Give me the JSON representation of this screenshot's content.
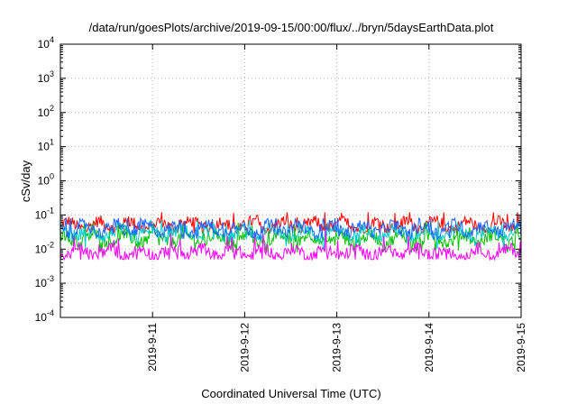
{
  "chart_data": {
    "type": "line",
    "title": "/data/run/goesPlots/archive/2019-09-15/00:00/flux/../bryn/5daysEarthData.plot",
    "xlabel": "Coordinated Universal Time (UTC)",
    "ylabel": "cSv/day",
    "yscale": "log",
    "ylim": [
      0.0001,
      10000
    ],
    "xlim": [
      "2019-09-10 00:00",
      "2019-09-15 00:00"
    ],
    "grid": true,
    "x_ticks": [
      {
        "label": "2019-9-11",
        "day": 1
      },
      {
        "label": "2019-9-12",
        "day": 2
      },
      {
        "label": "2019-9-13",
        "day": 3
      },
      {
        "label": "2019-9-14",
        "day": 4
      },
      {
        "label": "2019-9-15",
        "day": 5
      }
    ],
    "y_ticks": [
      {
        "base": "10",
        "exp": "-4",
        "value": 0.0001
      },
      {
        "base": "10",
        "exp": "-3",
        "value": 0.001
      },
      {
        "base": "10",
        "exp": "-2",
        "value": 0.01
      },
      {
        "base": "10",
        "exp": "-1",
        "value": 0.1
      },
      {
        "base": "10",
        "exp": "0",
        "value": 1
      },
      {
        "base": "10",
        "exp": "1",
        "value": 10
      },
      {
        "base": "10",
        "exp": "2",
        "value": 100
      },
      {
        "base": "10",
        "exp": "3",
        "value": 1000
      },
      {
        "base": "10",
        "exp": "4",
        "value": 10000
      }
    ],
    "series": [
      {
        "color": "#ff0000",
        "typical": 0.05,
        "min": 0.03,
        "max": 0.12
      },
      {
        "color": "#00c000",
        "typical": 0.02,
        "min": 0.008,
        "max": 0.06
      },
      {
        "color": "#00cccc",
        "typical": 0.03,
        "min": 0.01,
        "max": 0.07
      },
      {
        "color": "#1e64ff",
        "typical": 0.04,
        "min": 0.02,
        "max": 0.08
      },
      {
        "color": "#ff00ff",
        "typical": 0.008,
        "min": 0.005,
        "max": 0.05
      }
    ]
  }
}
